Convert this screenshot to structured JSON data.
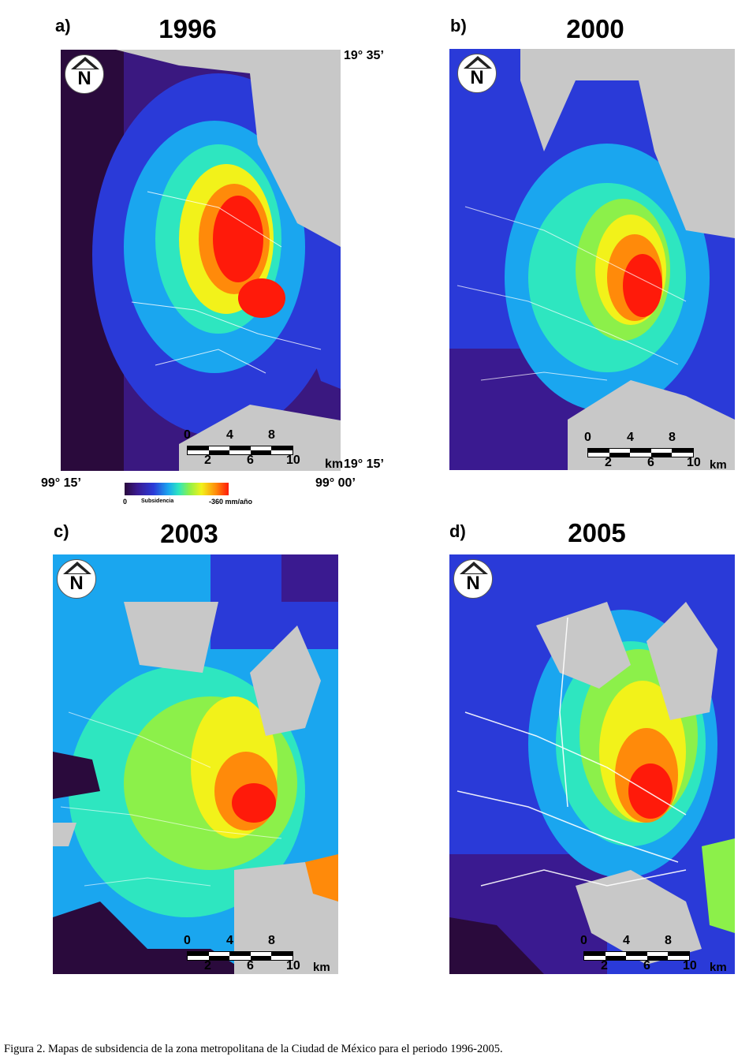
{
  "panels": [
    {
      "label": "a)",
      "year": "1996"
    },
    {
      "label": "b)",
      "year": "2000"
    },
    {
      "label": "c)",
      "year": "2003"
    },
    {
      "label": "d)",
      "year": "2005"
    }
  ],
  "north_label": "N",
  "scale": {
    "top_ticks": [
      "0",
      "4",
      "8"
    ],
    "bottom_ticks": [
      "2",
      "6",
      "10"
    ],
    "unit": "km"
  },
  "coordinates": {
    "lat_north": "19° 35’",
    "lat_south": "19° 15’",
    "lon_west": "99° 15’",
    "lon_east": "99° 00’"
  },
  "legend": {
    "min_label": "0",
    "title": "Subsidencia",
    "max_label": "-360 mm/año",
    "colors": [
      "#2a0a3c",
      "#3a1a90",
      "#2a3ad8",
      "#1aa6ef",
      "#2ee6c0",
      "#8cf04a",
      "#f2f21a",
      "#ff8a0a",
      "#ff1a0a"
    ]
  },
  "caption": "Figura 2. Mapas de subsidencia de la zona metropolitana de la Ciudad de México para el periodo 1996-2005."
}
